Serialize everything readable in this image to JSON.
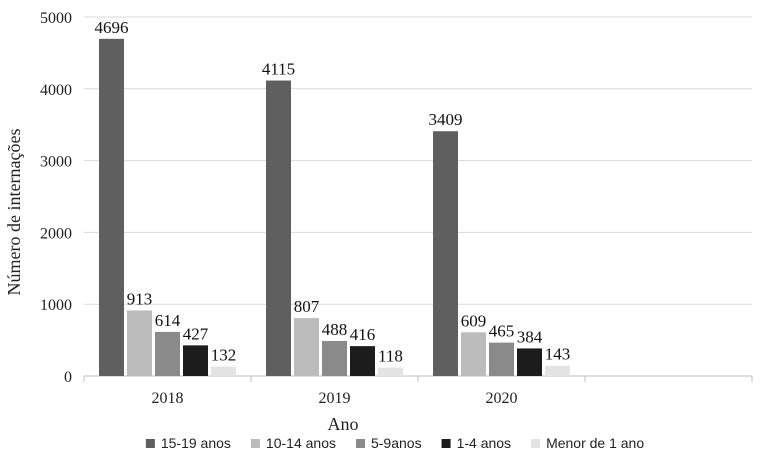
{
  "chart_data": {
    "type": "bar",
    "categories": [
      "2018",
      "2019",
      "2020"
    ],
    "series": [
      {
        "name": "15-19 anos",
        "values": [
          4696,
          4115,
          3409
        ],
        "color": "#5f5f5f"
      },
      {
        "name": "10-14 anos",
        "values": [
          913,
          807,
          609
        ],
        "color": "#bcbcbc"
      },
      {
        "name": "5-9anos",
        "values": [
          614,
          488,
          465
        ],
        "color": "#8a8a8a"
      },
      {
        "name": "1-4 anos",
        "values": [
          427,
          416,
          384
        ],
        "color": "#1c1c1c"
      },
      {
        "name": "Menor de 1 ano",
        "values": [
          132,
          118,
          143
        ],
        "color": "#e3e3e3"
      }
    ],
    "xlabel": "Ano",
    "ylabel": "Número de internações",
    "ylim": [
      0,
      5000
    ],
    "yticks": [
      0,
      1000,
      2000,
      3000,
      4000,
      5000
    ],
    "grid": true,
    "legend": "bottom",
    "empty_slots": 1
  }
}
